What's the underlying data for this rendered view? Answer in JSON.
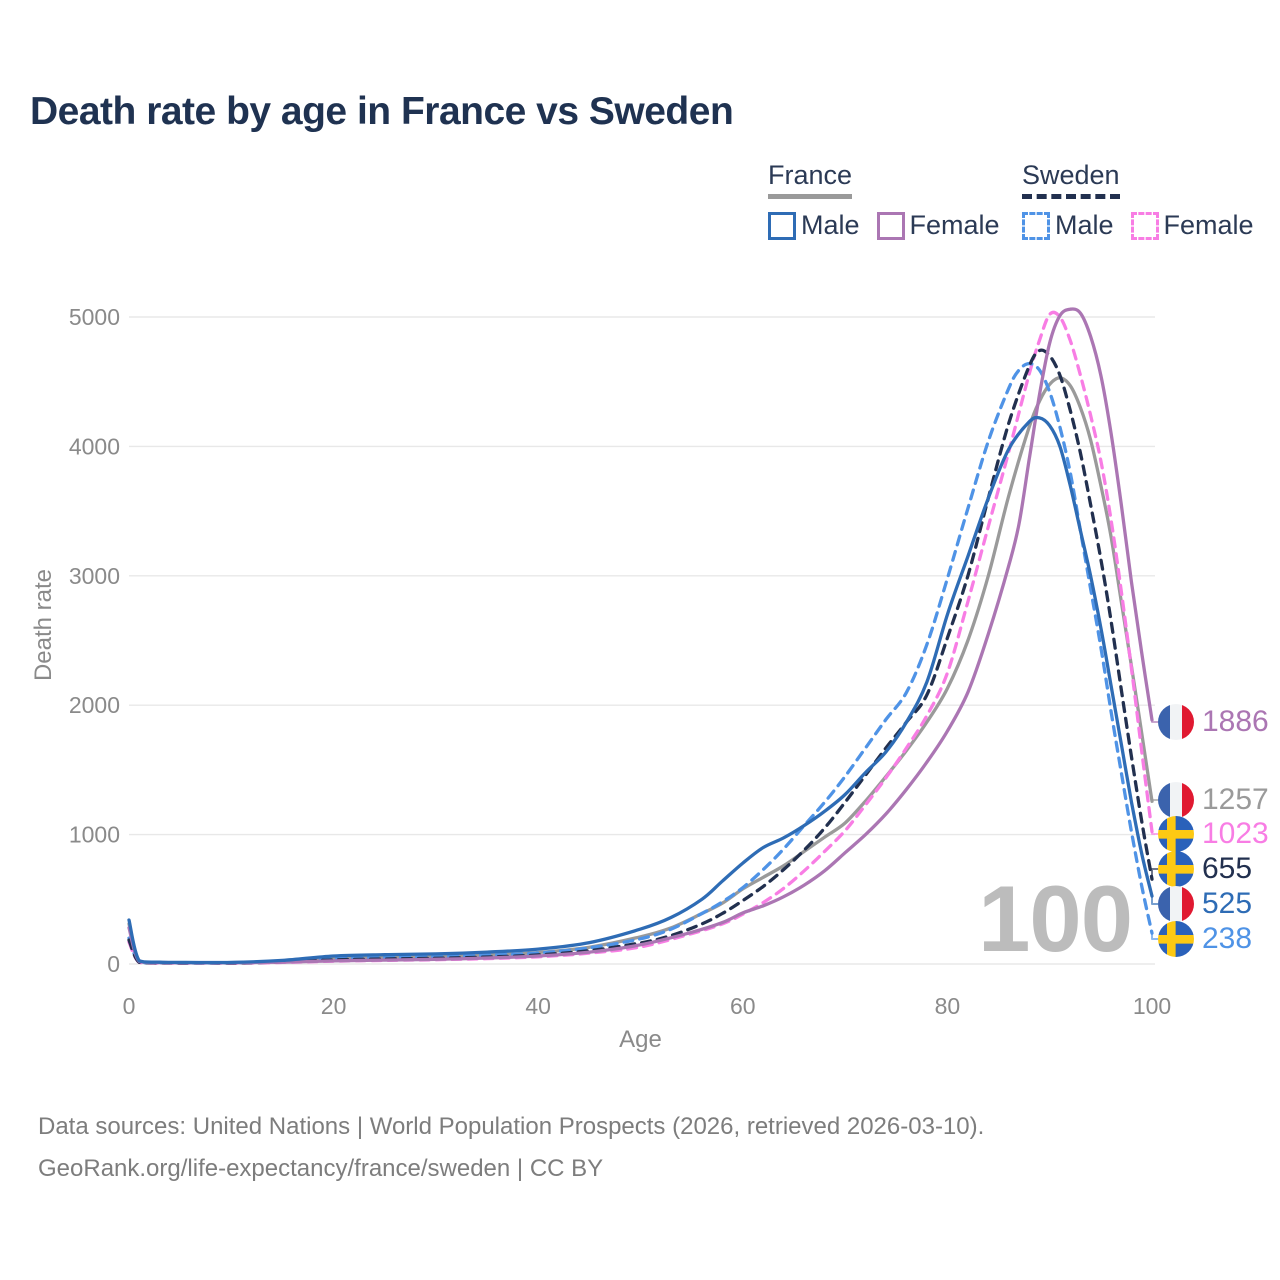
{
  "page": {
    "title": "Death rate by age in France vs Sweden",
    "watermark_age": "100"
  },
  "legend": {
    "france": {
      "label": "France",
      "male_label": "Male",
      "female_label": "Female"
    },
    "sweden": {
      "label": "Sweden",
      "male_label": "Male",
      "female_label": "Female"
    }
  },
  "axes": {
    "x_label": "Age",
    "y_label": "Death rate",
    "x_ticks": [
      0,
      20,
      40,
      60,
      80,
      100
    ],
    "y_ticks": [
      0,
      1000,
      2000,
      3000,
      4000,
      5000
    ]
  },
  "footer": {
    "line1": "Data sources: United Nations | World Population Prospects (2026, retrieved 2026-03-10).",
    "line2": "GeoRank.org/life-expectancy/france/sweden | CC BY"
  },
  "colors": {
    "title": "#1f3251",
    "axis_text": "#8a8a8a",
    "grid": "#e8e8e8",
    "watermark": "#bcbcbc",
    "footer_text": "#7d7d7d",
    "legend_text": "#2b3a55",
    "france_male": "#2e6cb5",
    "france_female": "#ab76b3",
    "france_all": "#9a9a9a",
    "sweden_male": "#4f93e6",
    "sweden_female": "#f87de4",
    "sweden_all": "#22304f"
  },
  "chart_data": {
    "type": "line",
    "title": "Death rate by age in France vs Sweden",
    "xlabel": "Age",
    "ylabel": "Death rate",
    "xlim": [
      0,
      100
    ],
    "ylim": [
      0,
      5000
    ],
    "grid": true,
    "legend_position": "top-right",
    "series": [
      {
        "name": "France All",
        "country": "france",
        "sex": "all",
        "line_style": "solid",
        "color_key": "france_all",
        "end_value": 1257,
        "points": [
          [
            0,
            310
          ],
          [
            1,
            22
          ],
          [
            3,
            12
          ],
          [
            5,
            11
          ],
          [
            10,
            11
          ],
          [
            15,
            21
          ],
          [
            20,
            43
          ],
          [
            25,
            51
          ],
          [
            30,
            57
          ],
          [
            35,
            69
          ],
          [
            40,
            89
          ],
          [
            45,
            130
          ],
          [
            50,
            210
          ],
          [
            53,
            280
          ],
          [
            56,
            390
          ],
          [
            58,
            470
          ],
          [
            60,
            580
          ],
          [
            62,
            670
          ],
          [
            64,
            760
          ],
          [
            66,
            870
          ],
          [
            68,
            980
          ],
          [
            70,
            1090
          ],
          [
            72,
            1260
          ],
          [
            74,
            1450
          ],
          [
            76,
            1650
          ],
          [
            78,
            1870
          ],
          [
            80,
            2130
          ],
          [
            82,
            2500
          ],
          [
            84,
            3000
          ],
          [
            86,
            3620
          ],
          [
            88,
            4150
          ],
          [
            89,
            4350
          ],
          [
            90,
            4480
          ],
          [
            91,
            4530
          ],
          [
            92,
            4470
          ],
          [
            93,
            4300
          ],
          [
            94,
            4050
          ],
          [
            95,
            3700
          ],
          [
            96,
            3300
          ],
          [
            97,
            2800
          ],
          [
            98,
            2300
          ],
          [
            99,
            1780
          ],
          [
            100,
            1257
          ]
        ]
      },
      {
        "name": "Sweden Female",
        "country": "sweden",
        "sex": "female",
        "line_style": "dashed",
        "color_key": "sweden_female",
        "end_value": 1023,
        "points": [
          [
            0,
            170
          ],
          [
            1,
            12
          ],
          [
            3,
            7
          ],
          [
            5,
            6
          ],
          [
            10,
            6
          ],
          [
            15,
            12
          ],
          [
            20,
            22
          ],
          [
            25,
            28
          ],
          [
            30,
            33
          ],
          [
            35,
            42
          ],
          [
            40,
            56
          ],
          [
            45,
            84
          ],
          [
            50,
            132
          ],
          [
            55,
            235
          ],
          [
            58,
            310
          ],
          [
            60,
            385
          ],
          [
            62,
            475
          ],
          [
            64,
            585
          ],
          [
            66,
            720
          ],
          [
            68,
            870
          ],
          [
            70,
            1030
          ],
          [
            72,
            1230
          ],
          [
            74,
            1440
          ],
          [
            76,
            1670
          ],
          [
            78,
            1920
          ],
          [
            80,
            2250
          ],
          [
            82,
            2800
          ],
          [
            84,
            3380
          ],
          [
            86,
            3960
          ],
          [
            88,
            4560
          ],
          [
            89,
            4820
          ],
          [
            90,
            5020
          ],
          [
            91,
            5000
          ],
          [
            92,
            4820
          ],
          [
            93,
            4550
          ],
          [
            94,
            4240
          ],
          [
            95,
            3890
          ],
          [
            96,
            3430
          ],
          [
            97,
            2880
          ],
          [
            98,
            2280
          ],
          [
            99,
            1640
          ],
          [
            100,
            1023
          ]
        ]
      },
      {
        "name": "Sweden Male",
        "country": "sweden",
        "sex": "male",
        "line_style": "dashed",
        "color_key": "sweden_male",
        "end_value": 238,
        "points": [
          [
            0,
            200
          ],
          [
            1,
            14
          ],
          [
            3,
            9
          ],
          [
            5,
            8
          ],
          [
            10,
            8
          ],
          [
            15,
            20
          ],
          [
            20,
            42
          ],
          [
            25,
            50
          ],
          [
            30,
            56
          ],
          [
            35,
            68
          ],
          [
            40,
            85
          ],
          [
            45,
            125
          ],
          [
            50,
            195
          ],
          [
            53,
            270
          ],
          [
            56,
            390
          ],
          [
            58,
            480
          ],
          [
            60,
            590
          ],
          [
            62,
            730
          ],
          [
            64,
            890
          ],
          [
            66,
            1070
          ],
          [
            68,
            1250
          ],
          [
            70,
            1450
          ],
          [
            72,
            1670
          ],
          [
            74,
            1890
          ],
          [
            76,
            2100
          ],
          [
            78,
            2470
          ],
          [
            80,
            2980
          ],
          [
            82,
            3520
          ],
          [
            84,
            4040
          ],
          [
            86,
            4450
          ],
          [
            87,
            4590
          ],
          [
            88,
            4640
          ],
          [
            89,
            4590
          ],
          [
            90,
            4420
          ],
          [
            91,
            4150
          ],
          [
            92,
            3800
          ],
          [
            93,
            3350
          ],
          [
            94,
            2900
          ],
          [
            95,
            2450
          ],
          [
            96,
            1950
          ],
          [
            97,
            1480
          ],
          [
            98,
            1020
          ],
          [
            99,
            600
          ],
          [
            100,
            238
          ]
        ]
      },
      {
        "name": "Sweden All",
        "country": "sweden",
        "sex": "all",
        "line_style": "dashed",
        "color_key": "sweden_all",
        "end_value": 655,
        "points": [
          [
            0,
            185
          ],
          [
            1,
            13
          ],
          [
            3,
            8
          ],
          [
            5,
            7
          ],
          [
            10,
            7
          ],
          [
            15,
            16
          ],
          [
            20,
            32
          ],
          [
            25,
            39
          ],
          [
            30,
            44
          ],
          [
            35,
            54
          ],
          [
            40,
            70
          ],
          [
            45,
            103
          ],
          [
            50,
            163
          ],
          [
            53,
            220
          ],
          [
            56,
            310
          ],
          [
            58,
            390
          ],
          [
            60,
            490
          ],
          [
            62,
            600
          ],
          [
            64,
            730
          ],
          [
            66,
            880
          ],
          [
            68,
            1050
          ],
          [
            70,
            1250
          ],
          [
            72,
            1460
          ],
          [
            74,
            1670
          ],
          [
            76,
            1870
          ],
          [
            78,
            2080
          ],
          [
            80,
            2520
          ],
          [
            82,
            3000
          ],
          [
            84,
            3600
          ],
          [
            86,
            4180
          ],
          [
            88,
            4620
          ],
          [
            89,
            4740
          ],
          [
            90,
            4700
          ],
          [
            91,
            4550
          ],
          [
            92,
            4280
          ],
          [
            93,
            3950
          ],
          [
            94,
            3550
          ],
          [
            95,
            3130
          ],
          [
            96,
            2650
          ],
          [
            97,
            2120
          ],
          [
            98,
            1600
          ],
          [
            99,
            1100
          ],
          [
            100,
            655
          ]
        ]
      },
      {
        "name": "France Female",
        "country": "france",
        "sex": "female",
        "line_style": "solid",
        "color_key": "france_female",
        "end_value": 1886,
        "points": [
          [
            0,
            280
          ],
          [
            1,
            20
          ],
          [
            3,
            11
          ],
          [
            5,
            10
          ],
          [
            10,
            10
          ],
          [
            15,
            14
          ],
          [
            20,
            24
          ],
          [
            25,
            30
          ],
          [
            30,
            36
          ],
          [
            35,
            46
          ],
          [
            40,
            62
          ],
          [
            45,
            92
          ],
          [
            50,
            148
          ],
          [
            55,
            245
          ],
          [
            58,
            320
          ],
          [
            60,
            395
          ],
          [
            62,
            450
          ],
          [
            64,
            520
          ],
          [
            66,
            610
          ],
          [
            68,
            720
          ],
          [
            70,
            860
          ],
          [
            72,
            1000
          ],
          [
            74,
            1160
          ],
          [
            76,
            1350
          ],
          [
            78,
            1560
          ],
          [
            80,
            1800
          ],
          [
            82,
            2100
          ],
          [
            84,
            2550
          ],
          [
            86,
            3080
          ],
          [
            87,
            3400
          ],
          [
            88,
            3900
          ],
          [
            89,
            4400
          ],
          [
            90,
            4800
          ],
          [
            91,
            5010
          ],
          [
            92,
            5060
          ],
          [
            93,
            5030
          ],
          [
            94,
            4850
          ],
          [
            95,
            4550
          ],
          [
            96,
            4100
          ],
          [
            97,
            3550
          ],
          [
            98,
            2950
          ],
          [
            99,
            2400
          ],
          [
            100,
            1886
          ]
        ]
      },
      {
        "name": "France Male",
        "country": "france",
        "sex": "male",
        "line_style": "solid",
        "color_key": "france_male",
        "end_value": 525,
        "points": [
          [
            0,
            340
          ],
          [
            1,
            25
          ],
          [
            3,
            14
          ],
          [
            5,
            12
          ],
          [
            10,
            12
          ],
          [
            15,
            28
          ],
          [
            20,
            62
          ],
          [
            25,
            72
          ],
          [
            30,
            78
          ],
          [
            35,
            92
          ],
          [
            40,
            115
          ],
          [
            45,
            165
          ],
          [
            50,
            270
          ],
          [
            53,
            360
          ],
          [
            56,
            500
          ],
          [
            58,
            640
          ],
          [
            60,
            780
          ],
          [
            62,
            900
          ],
          [
            64,
            975
          ],
          [
            66,
            1070
          ],
          [
            68,
            1180
          ],
          [
            70,
            1310
          ],
          [
            72,
            1480
          ],
          [
            74,
            1640
          ],
          [
            76,
            1870
          ],
          [
            78,
            2180
          ],
          [
            80,
            2700
          ],
          [
            82,
            3150
          ],
          [
            84,
            3600
          ],
          [
            86,
            3980
          ],
          [
            88,
            4190
          ],
          [
            89,
            4220
          ],
          [
            90,
            4160
          ],
          [
            91,
            4000
          ],
          [
            92,
            3700
          ],
          [
            93,
            3350
          ],
          [
            94,
            3000
          ],
          [
            95,
            2600
          ],
          [
            96,
            2150
          ],
          [
            97,
            1700
          ],
          [
            98,
            1250
          ],
          [
            99,
            850
          ],
          [
            100,
            525
          ]
        ]
      }
    ]
  }
}
